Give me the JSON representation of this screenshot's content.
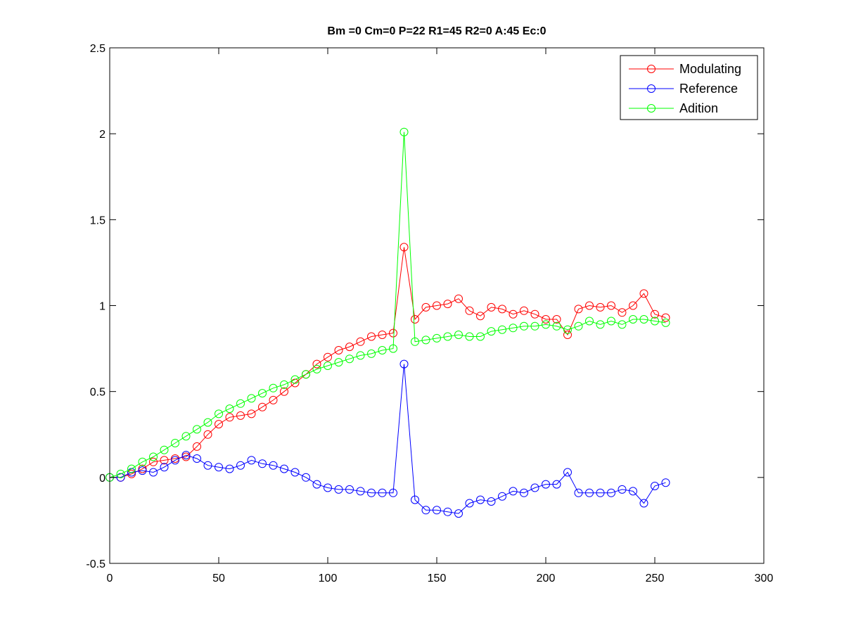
{
  "chart_data": {
    "type": "line",
    "title": "Bm =0  Cm=0  P=22  R1=45  R2=0  A:45  Ec:0",
    "xlabel": "",
    "ylabel": "",
    "xlim": [
      0,
      300
    ],
    "ylim": [
      -0.5,
      2.5
    ],
    "xticks": [
      0,
      50,
      100,
      150,
      200,
      250,
      300
    ],
    "yticks": [
      -0.5,
      0,
      0.5,
      1,
      1.5,
      2,
      2.5
    ],
    "xtick_labels": [
      "0",
      "50",
      "100",
      "150",
      "200",
      "250",
      "300"
    ],
    "ytick_labels": [
      "-0.5",
      "0",
      "0.5",
      "1",
      "1.5",
      "2",
      "2.5"
    ],
    "grid": false,
    "legend_position": "top-right",
    "marker": "circle",
    "x": [
      0,
      5,
      10,
      15,
      20,
      25,
      30,
      35,
      40,
      45,
      50,
      55,
      60,
      65,
      70,
      75,
      80,
      85,
      90,
      95,
      100,
      105,
      110,
      115,
      120,
      125,
      130,
      135,
      140,
      145,
      150,
      155,
      160,
      165,
      170,
      175,
      180,
      185,
      190,
      195,
      200,
      205,
      210,
      215,
      220,
      225,
      230,
      235,
      240,
      245,
      250,
      255
    ],
    "series": [
      {
        "name": "Modulating",
        "color": "#ff0000",
        "values": [
          0,
          0,
          0.02,
          0.05,
          0.09,
          0.1,
          0.11,
          0.12,
          0.18,
          0.25,
          0.31,
          0.35,
          0.36,
          0.37,
          0.41,
          0.45,
          0.5,
          0.55,
          0.6,
          0.66,
          0.7,
          0.74,
          0.76,
          0.79,
          0.82,
          0.83,
          0.84,
          1.34,
          0.92,
          0.99,
          1.0,
          1.01,
          1.04,
          0.97,
          0.94,
          0.99,
          0.98,
          0.95,
          0.97,
          0.95,
          0.92,
          0.92,
          0.83,
          0.98,
          1.0,
          0.99,
          1.0,
          0.96,
          1.0,
          1.07,
          0.95,
          0.93
        ]
      },
      {
        "name": "Reference",
        "color": "#0000ff",
        "values": [
          0,
          0,
          0.03,
          0.04,
          0.03,
          0.06,
          0.1,
          0.13,
          0.11,
          0.07,
          0.06,
          0.05,
          0.07,
          0.1,
          0.08,
          0.07,
          0.05,
          0.03,
          0,
          -0.04,
          -0.06,
          -0.07,
          -0.07,
          -0.08,
          -0.09,
          -0.09,
          -0.09,
          0.66,
          -0.13,
          -0.19,
          -0.19,
          -0.2,
          -0.21,
          -0.15,
          -0.13,
          -0.14,
          -0.11,
          -0.08,
          -0.09,
          -0.06,
          -0.04,
          -0.04,
          0.03,
          -0.09,
          -0.09,
          -0.09,
          -0.09,
          -0.07,
          -0.08,
          -0.15,
          -0.05,
          -0.03
        ]
      },
      {
        "name": "Adition",
        "color": "#00ff00",
        "values": [
          0,
          0.02,
          0.05,
          0.09,
          0.12,
          0.16,
          0.2,
          0.24,
          0.28,
          0.32,
          0.37,
          0.4,
          0.43,
          0.46,
          0.49,
          0.52,
          0.54,
          0.57,
          0.6,
          0.63,
          0.65,
          0.67,
          0.69,
          0.71,
          0.72,
          0.74,
          0.75,
          2.01,
          0.79,
          0.8,
          0.81,
          0.82,
          0.83,
          0.82,
          0.82,
          0.85,
          0.86,
          0.87,
          0.88,
          0.88,
          0.89,
          0.88,
          0.86,
          0.88,
          0.91,
          0.89,
          0.91,
          0.89,
          0.92,
          0.92,
          0.91,
          0.9
        ]
      }
    ]
  }
}
